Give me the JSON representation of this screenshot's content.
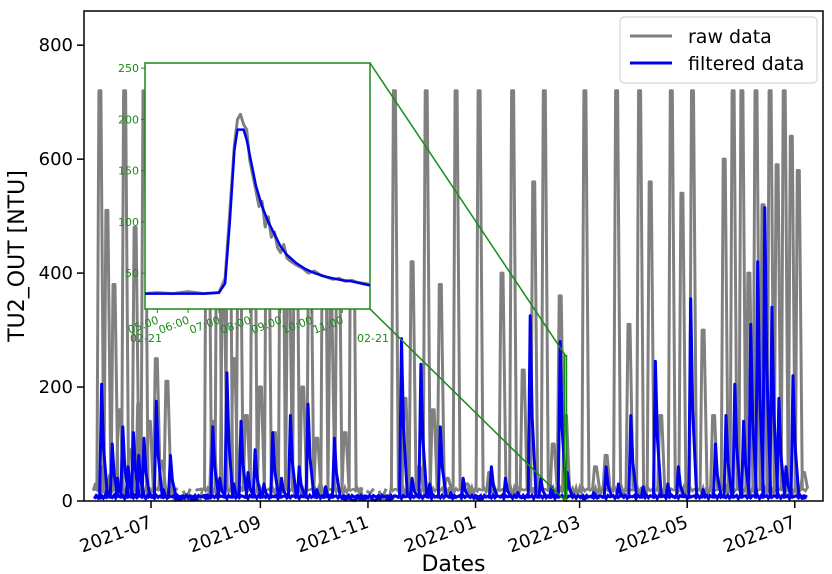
{
  "chart_data": {
    "type": "line",
    "xlabel": "Dates",
    "ylabel": "TU2_OUT [NTU]",
    "ylim": [
      0,
      860
    ],
    "xlim": [
      "2021-05-24",
      "2022-07-17"
    ],
    "yticks": [
      0,
      200,
      400,
      600,
      800
    ],
    "xtick_labels": [
      "2021-07",
      "2021-09",
      "2021-11",
      "2022-01",
      "2022-03",
      "2022-05",
      "2022-07"
    ],
    "xtick_dates": [
      "2021-07-01",
      "2021-09-01",
      "2021-11-01",
      "2022-01-01",
      "2022-03-01",
      "2022-05-01",
      "2022-07-01"
    ],
    "legend": {
      "placement": "top-right",
      "entries": [
        "raw data",
        "filtered data"
      ]
    },
    "series_colors": {
      "raw": "#808080",
      "filtered": "#0000ee"
    },
    "series": [
      {
        "name": "raw data",
        "color": "#808080",
        "x": [
          "2021-05-31",
          "2021-06-02",
          "2021-06-04",
          "2021-06-06",
          "2021-06-08",
          "2021-06-10",
          "2021-06-13",
          "2021-06-16",
          "2021-06-19",
          "2021-06-22",
          "2021-06-24",
          "2021-06-27",
          "2021-06-30",
          "2021-07-04",
          "2021-07-07",
          "2021-07-10",
          "2021-07-14",
          "2021-07-21",
          "2021-07-28",
          "2021-08-02",
          "2021-08-05",
          "2021-08-08",
          "2021-08-11",
          "2021-08-14",
          "2021-08-17",
          "2021-08-20",
          "2021-08-24",
          "2021-08-28",
          "2021-09-01",
          "2021-09-05",
          "2021-09-09",
          "2021-09-13",
          "2021-09-17",
          "2021-09-21",
          "2021-09-25",
          "2021-09-29",
          "2021-10-03",
          "2021-10-07",
          "2021-10-11",
          "2021-10-15",
          "2021-10-19",
          "2021-10-23",
          "2021-10-27",
          "2021-11-02",
          "2021-11-09",
          "2021-11-16",
          "2021-11-22",
          "2021-11-26",
          "2021-11-30",
          "2021-12-04",
          "2021-12-08",
          "2021-12-12",
          "2021-12-16",
          "2021-12-21",
          "2021-12-27",
          "2022-01-03",
          "2022-01-09",
          "2022-01-16",
          "2022-01-22",
          "2022-01-28",
          "2022-02-03",
          "2022-02-09",
          "2022-02-14",
          "2022-02-18",
          "2022-02-21",
          "2022-02-25",
          "2022-03-04",
          "2022-03-10",
          "2022-03-16",
          "2022-03-22",
          "2022-03-29",
          "2022-04-04",
          "2022-04-10",
          "2022-04-16",
          "2022-04-22",
          "2022-04-28",
          "2022-05-04",
          "2022-05-10",
          "2022-05-16",
          "2022-05-22",
          "2022-05-27",
          "2022-06-01",
          "2022-06-05",
          "2022-06-09",
          "2022-06-13",
          "2022-06-17",
          "2022-06-21",
          "2022-06-25",
          "2022-06-29",
          "2022-07-03",
          "2022-07-06"
        ],
        "y": [
          30,
          720,
          60,
          510,
          45,
          380,
          160,
          720,
          90,
          480,
          170,
          720,
          140,
          250,
          70,
          210,
          20,
          8,
          20,
          720,
          140,
          650,
          400,
          720,
          250,
          560,
          150,
          720,
          200,
          620,
          120,
          720,
          430,
          640,
          200,
          510,
          110,
          720,
          340,
          560,
          120,
          720,
          20,
          15,
          8,
          720,
          180,
          420,
          60,
          720,
          160,
          380,
          40,
          720,
          30,
          720,
          50,
          400,
          720,
          230,
          560,
          720,
          100,
          360,
          150,
          12,
          720,
          60,
          80,
          720,
          310,
          720,
          560,
          150,
          720,
          540,
          720,
          300,
          150,
          600,
          720,
          720,
          400,
          720,
          520,
          720,
          590,
          720,
          640,
          580,
          50
        ]
      },
      {
        "name": "filtered data",
        "color": "#0000ee",
        "x": [
          "2021-05-31",
          "2021-06-03",
          "2021-06-06",
          "2021-06-09",
          "2021-06-12",
          "2021-06-15",
          "2021-06-18",
          "2021-06-21",
          "2021-06-24",
          "2021-06-27",
          "2021-06-30",
          "2021-07-04",
          "2021-07-08",
          "2021-07-12",
          "2021-07-16",
          "2021-07-24",
          "2021-08-01",
          "2021-08-05",
          "2021-08-09",
          "2021-08-13",
          "2021-08-17",
          "2021-08-21",
          "2021-08-25",
          "2021-08-29",
          "2021-09-03",
          "2021-09-08",
          "2021-09-13",
          "2021-09-18",
          "2021-09-23",
          "2021-09-28",
          "2021-10-03",
          "2021-10-08",
          "2021-10-13",
          "2021-10-18",
          "2021-10-23",
          "2021-10-28",
          "2021-11-04",
          "2021-11-12",
          "2021-11-20",
          "2021-11-26",
          "2021-12-01",
          "2021-12-06",
          "2021-12-12",
          "2021-12-18",
          "2021-12-25",
          "2022-01-02",
          "2022-01-10",
          "2022-01-18",
          "2022-01-25",
          "2022-02-01",
          "2022-02-07",
          "2022-02-13",
          "2022-02-18",
          "2022-02-22",
          "2022-03-02",
          "2022-03-09",
          "2022-03-16",
          "2022-03-23",
          "2022-03-30",
          "2022-04-06",
          "2022-04-13",
          "2022-04-20",
          "2022-04-26",
          "2022-05-03",
          "2022-05-10",
          "2022-05-17",
          "2022-05-23",
          "2022-05-28",
          "2022-06-02",
          "2022-06-06",
          "2022-06-10",
          "2022-06-14",
          "2022-06-18",
          "2022-06-22",
          "2022-06-26",
          "2022-06-30",
          "2022-07-04"
        ],
        "y": [
          10,
          205,
          20,
          100,
          40,
          130,
          60,
          120,
          80,
          110,
          15,
          175,
          20,
          80,
          5,
          3,
          10,
          130,
          40,
          225,
          30,
          140,
          50,
          90,
          30,
          120,
          40,
          150,
          60,
          170,
          20,
          25,
          110,
          5,
          2,
          4,
          2,
          3,
          285,
          40,
          240,
          30,
          130,
          15,
          40,
          5,
          60,
          40,
          15,
          325,
          40,
          25,
          280,
          50,
          8,
          15,
          60,
          30,
          150,
          25,
          245,
          30,
          60,
          355,
          20,
          100,
          150,
          205,
          140,
          310,
          420,
          515,
          340,
          180,
          60,
          220,
          10
        ]
      }
    ],
    "inset": {
      "xtick_labels": [
        "05:00",
        "06:00",
        "07:00",
        "08:00",
        "09:00",
        "10:00",
        "11:00"
      ],
      "x_end_labels": [
        "02-21",
        "02-21"
      ],
      "yticks": [
        50,
        100,
        150,
        200,
        250
      ],
      "ylim": [
        15,
        255
      ],
      "xlim": [
        4.6,
        11.9
      ],
      "zoom_date": "2022-02-21",
      "zoom_ylim": [
        0,
        255
      ],
      "series": [
        {
          "name": "raw data",
          "x": [
            4.6,
            5.0,
            5.5,
            6.0,
            6.5,
            7.0,
            7.2,
            7.35,
            7.5,
            7.6,
            7.7,
            7.8,
            7.9,
            8.0,
            8.1,
            8.2,
            8.3,
            8.4,
            8.5,
            8.6,
            8.7,
            8.8,
            8.9,
            9.0,
            9.1,
            9.2,
            9.3,
            9.5,
            9.7,
            9.9,
            10.1,
            10.3,
            10.5,
            10.7,
            10.9,
            11.1,
            11.3,
            11.5,
            11.7,
            11.9
          ],
          "y": [
            30,
            31,
            30,
            32,
            30,
            31,
            45,
            110,
            175,
            200,
            205,
            195,
            190,
            160,
            145,
            130,
            115,
            120,
            95,
            105,
            85,
            90,
            75,
            70,
            78,
            65,
            62,
            58,
            55,
            50,
            52,
            48,
            46,
            44,
            45,
            42,
            43,
            41,
            40,
            39
          ]
        },
        {
          "name": "filtered data",
          "x": [
            4.6,
            5.0,
            5.5,
            6.0,
            6.5,
            7.0,
            7.2,
            7.35,
            7.5,
            7.6,
            7.8,
            7.9,
            8.0,
            8.2,
            8.4,
            8.6,
            8.8,
            9.0,
            9.2,
            9.5,
            9.8,
            10.1,
            10.4,
            10.7,
            11.0,
            11.3,
            11.6,
            11.9
          ],
          "y": [
            30,
            30,
            30,
            30,
            30,
            31,
            40,
            100,
            170,
            190,
            190,
            180,
            165,
            135,
            115,
            100,
            88,
            76,
            68,
            60,
            54,
            50,
            47,
            45,
            43,
            42,
            40,
            38
          ]
        }
      ]
    }
  }
}
